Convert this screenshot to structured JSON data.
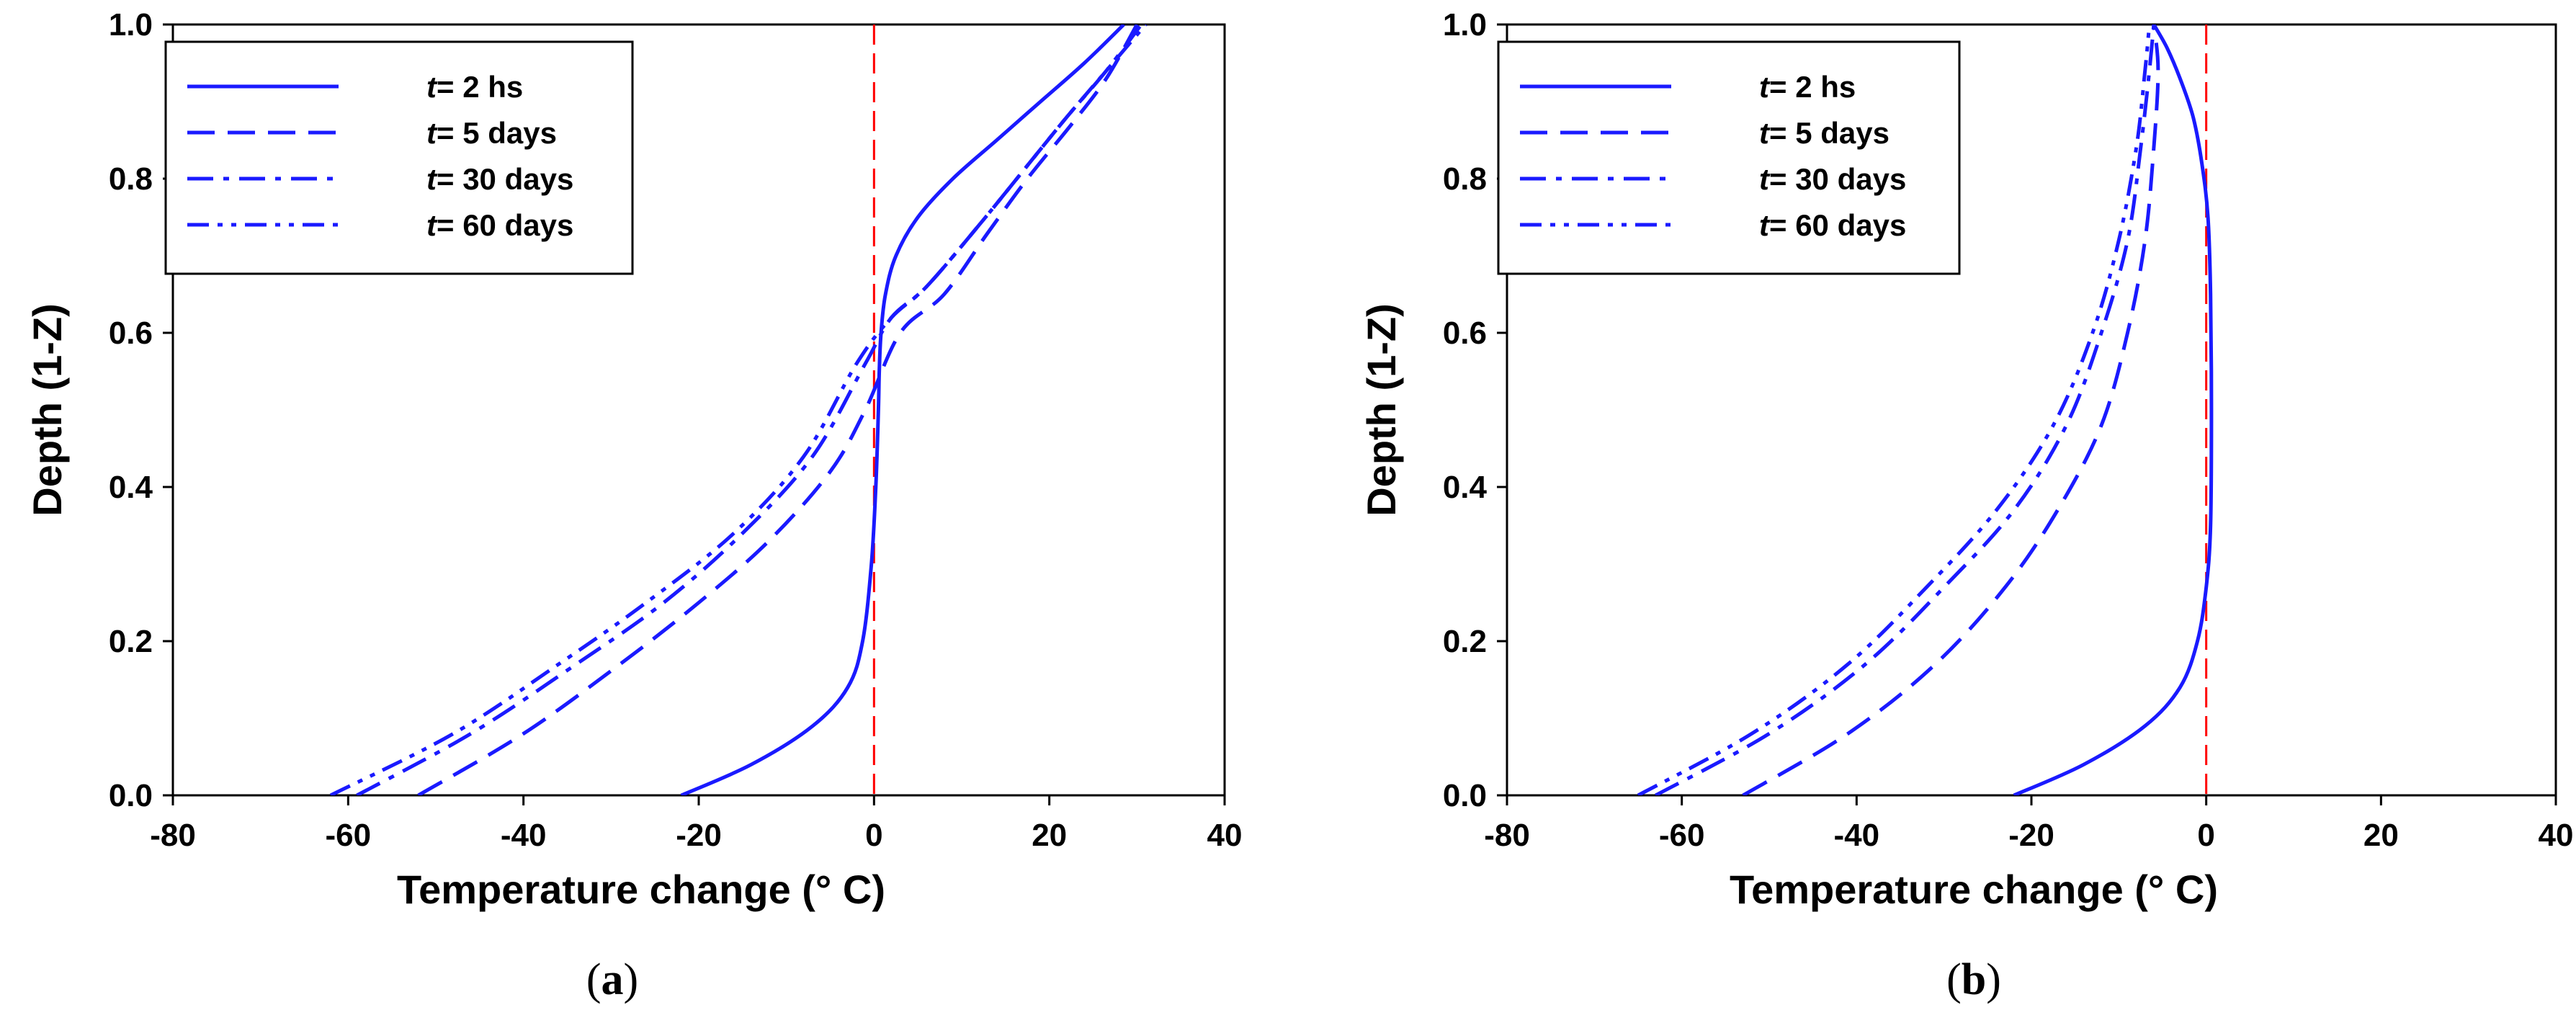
{
  "chart_data": [
    {
      "type": "line",
      "panel_label": "a",
      "caption": "(a)",
      "xlabel": "Temperature change (° C)",
      "ylabel": "Depth (1-Z)",
      "xlim": [
        -80,
        40
      ],
      "ylim": [
        0,
        1.0
      ],
      "xticks": [
        "-80",
        "-60",
        "-40",
        "-20",
        "0",
        "20",
        "40"
      ],
      "yticks": [
        "0.0",
        "0.2",
        "0.4",
        "0.6",
        "0.8",
        "1.0"
      ],
      "legend_position": "top-left",
      "reference_line": {
        "x": 0,
        "color": "#ff0000",
        "style": "dashed"
      },
      "series": [
        {
          "name": "t= 2 hs",
          "legend_prefix": "t",
          "legend_rest": "= 2 hs",
          "style": "solid",
          "x": [
            -22,
            -14,
            -7,
            -3,
            -1.3,
            -0.3,
            0.2,
            0.5,
            0.6,
            0.8,
            1.3,
            2.5,
            5,
            9,
            14,
            19,
            24,
            28.5
          ],
          "y": [
            0,
            0.04,
            0.09,
            0.14,
            0.2,
            0.3,
            0.4,
            0.5,
            0.55,
            0.6,
            0.65,
            0.7,
            0.75,
            0.8,
            0.85,
            0.9,
            0.95,
            1.0
          ]
        },
        {
          "name": "t= 5 days",
          "legend_prefix": "t",
          "legend_rest": "= 5 days",
          "style": "dash",
          "x": [
            -52,
            -40,
            -29,
            -20,
            -12,
            -5,
            -1,
            3,
            8,
            13,
            17.5,
            22.5,
            26.5,
            30
          ],
          "y": [
            0,
            0.08,
            0.17,
            0.25,
            0.33,
            0.42,
            0.5,
            0.6,
            0.65,
            0.73,
            0.8,
            0.87,
            0.93,
            1.0
          ]
        },
        {
          "name": "t= 30 days",
          "legend_prefix": "t",
          "legend_rest": "= 30 days",
          "style": "dashdot",
          "x": [
            -59,
            -46,
            -34,
            -24,
            -15,
            -7,
            -1,
            2,
            6,
            12,
            17,
            22,
            26.5,
            30.5
          ],
          "y": [
            0,
            0.08,
            0.17,
            0.25,
            0.34,
            0.44,
            0.56,
            0.62,
            0.66,
            0.74,
            0.81,
            0.88,
            0.94,
            1.0
          ]
        },
        {
          "name": "t= 60 days",
          "legend_prefix": "t",
          "legend_rest": "= 60 days",
          "style": "dashdotdot",
          "x": [
            -62,
            -48,
            -36,
            -26,
            -16,
            -8,
            -2,
            2,
            6,
            12,
            17,
            22,
            26.5,
            31
          ],
          "y": [
            0,
            0.08,
            0.17,
            0.25,
            0.34,
            0.44,
            0.56,
            0.62,
            0.66,
            0.74,
            0.81,
            0.88,
            0.94,
            1.0
          ]
        }
      ]
    },
    {
      "type": "line",
      "panel_label": "b",
      "caption": "(b)",
      "xlabel": "Temperature change (° C)",
      "ylabel": "Depth (1-Z)",
      "xlim": [
        -80,
        40
      ],
      "ylim": [
        0,
        1.0
      ],
      "xticks": [
        "-80",
        "-60",
        "-40",
        "-20",
        "0",
        "20",
        "40"
      ],
      "yticks": [
        "0.0",
        "0.2",
        "0.4",
        "0.6",
        "0.8",
        "1.0"
      ],
      "legend_position": "top-left",
      "reference_line": {
        "x": 0,
        "color": "#ff0000",
        "style": "dashed"
      },
      "series": [
        {
          "name": "t= 2 hs",
          "legend_prefix": "t",
          "legend_rest": "= 2 hs",
          "style": "solid",
          "x": [
            -22,
            -14,
            -7,
            -3,
            -1,
            0,
            0.5,
            0.6,
            0.5,
            0.2,
            -0.5,
            -1.5,
            -3,
            -4.5,
            -6
          ],
          "y": [
            0,
            0.04,
            0.09,
            0.14,
            0.2,
            0.27,
            0.35,
            0.5,
            0.65,
            0.75,
            0.82,
            0.88,
            0.93,
            0.97,
            1.0
          ]
        },
        {
          "name": "t= 5 days",
          "legend_prefix": "t",
          "legend_rest": "= 5 days",
          "style": "dash",
          "x": [
            -53,
            -41,
            -31,
            -23,
            -17,
            -12,
            -9,
            -7,
            -6,
            -5.5,
            -6
          ],
          "y": [
            0,
            0.08,
            0.17,
            0.27,
            0.37,
            0.48,
            0.6,
            0.72,
            0.84,
            0.94,
            1.0
          ]
        },
        {
          "name": "t= 30 days",
          "legend_prefix": "t",
          "legend_rest": "= 30 days",
          "style": "dashdot",
          "x": [
            -63,
            -50,
            -39,
            -30,
            -22,
            -16,
            -12,
            -9,
            -7.5,
            -6.5,
            -6
          ],
          "y": [
            0,
            0.08,
            0.17,
            0.27,
            0.37,
            0.48,
            0.6,
            0.72,
            0.84,
            0.94,
            1.0
          ]
        },
        {
          "name": "t= 60 days",
          "legend_prefix": "t",
          "legend_rest": "= 60 days",
          "style": "dashdotdot",
          "x": [
            -65,
            -52,
            -41,
            -32,
            -24,
            -17.5,
            -13,
            -10,
            -8,
            -7,
            -6.5
          ],
          "y": [
            0,
            0.08,
            0.17,
            0.27,
            0.37,
            0.48,
            0.6,
            0.72,
            0.84,
            0.94,
            1.0
          ]
        }
      ]
    }
  ],
  "colors": {
    "series": "#1a1aff",
    "reference": "#ff0000",
    "axis": "#000000"
  }
}
